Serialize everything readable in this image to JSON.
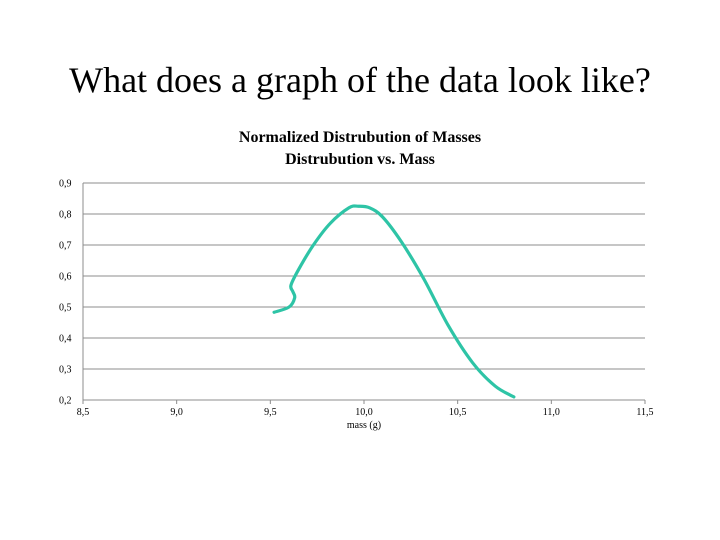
{
  "slide": {
    "title": "What does a graph of the data look like?"
  },
  "chart_data": {
    "type": "line",
    "title": "Normalized Distrubution of Masses",
    "subtitle": "Distrubution vs. Mass",
    "xlabel": "mass (g)",
    "ylabel": "",
    "xlim": [
      8.5,
      11.5
    ],
    "ylim": [
      0.2,
      0.9
    ],
    "x_ticks": [
      "8,5",
      "9,0",
      "9,5",
      "10,0",
      "10,5",
      "11,0",
      "11,5"
    ],
    "y_ticks": [
      "0,2",
      "0,3",
      "0,4",
      "0,5",
      "0,6",
      "0,7",
      "0,8",
      "0,9"
    ],
    "grid": "horizontal",
    "legend": "none",
    "series": [
      {
        "color": "#2ec4a6",
        "x": [
          9.52,
          9.6,
          9.63,
          9.62,
          9.61,
          9.65,
          9.73,
          9.82,
          9.92,
          9.97,
          10.03,
          10.1,
          10.2,
          10.32,
          10.45,
          10.58,
          10.7,
          10.8
        ],
        "y": [
          0.483,
          0.5,
          0.53,
          0.55,
          0.57,
          0.62,
          0.7,
          0.77,
          0.82,
          0.825,
          0.82,
          0.79,
          0.71,
          0.59,
          0.44,
          0.32,
          0.245,
          0.21
        ]
      }
    ]
  }
}
